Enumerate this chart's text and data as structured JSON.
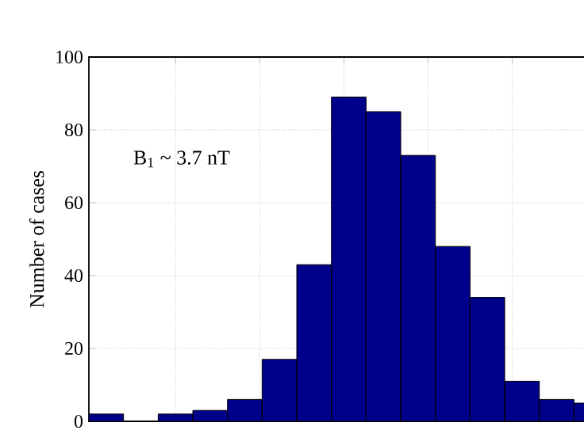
{
  "chart_data": {
    "type": "bar",
    "ylabel": "Number of cases",
    "annotations": [
      "B$_{1}$ ~ 3.7 nT"
    ],
    "categories": [
      null,
      null,
      null,
      null,
      null,
      null,
      null,
      null,
      null,
      null,
      null,
      null,
      null,
      null,
      null
    ],
    "values": [
      2,
      0,
      2,
      3,
      6,
      17,
      43,
      89,
      85,
      73,
      48,
      34,
      11,
      6,
      5
    ],
    "color": "#00008b",
    "ylim": [
      0,
      100
    ],
    "yticks": [
      0,
      20,
      40,
      60,
      80,
      100
    ],
    "grid": true,
    "tick_labels": "y"
  }
}
